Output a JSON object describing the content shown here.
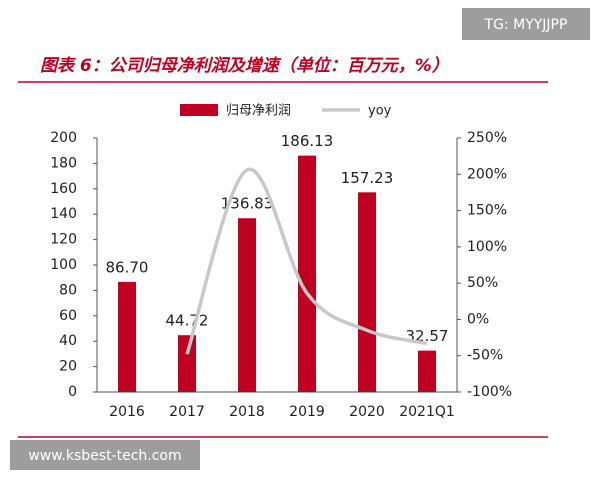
{
  "overlay": {
    "top": "TG: MYYJJPP",
    "bottom": "www.ksbest-tech.com"
  },
  "chart_data": {
    "type": "bar-line",
    "title": "图表 6：公司归母净利润及增速（单位：百万元，%）",
    "categories": [
      "2016",
      "2017",
      "2018",
      "2019",
      "2020",
      "2021Q1"
    ],
    "series": [
      {
        "name": "归母净利润",
        "type": "bar",
        "color": "#c00020",
        "values": [
          86.7,
          44.72,
          136.83,
          186.13,
          157.23,
          32.57
        ],
        "value_labels": [
          "86.70",
          "44.72",
          "136.83",
          "186.13",
          "157.23",
          "32.57"
        ]
      },
      {
        "name": "yoy",
        "type": "line",
        "color": "#c8c8c8",
        "axis": "y2",
        "values": [
          null,
          -48,
          206,
          36,
          -15,
          -33
        ]
      }
    ],
    "ylim": [
      0,
      200
    ],
    "yticks": [
      0,
      20,
      40,
      60,
      80,
      100,
      120,
      140,
      160,
      180,
      200
    ],
    "y2lim": [
      -100,
      250
    ],
    "y2ticks": [
      {
        "value": -100,
        "label": "-100%"
      },
      {
        "value": -50,
        "label": "-50%"
      },
      {
        "value": 0,
        "label": "0%"
      },
      {
        "value": 50,
        "label": "50%"
      },
      {
        "value": 100,
        "label": "100%"
      },
      {
        "value": 150,
        "label": "150%"
      },
      {
        "value": 200,
        "label": "200%"
      },
      {
        "value": 250,
        "label": "250%"
      }
    ],
    "grid": false,
    "legend": "top"
  }
}
